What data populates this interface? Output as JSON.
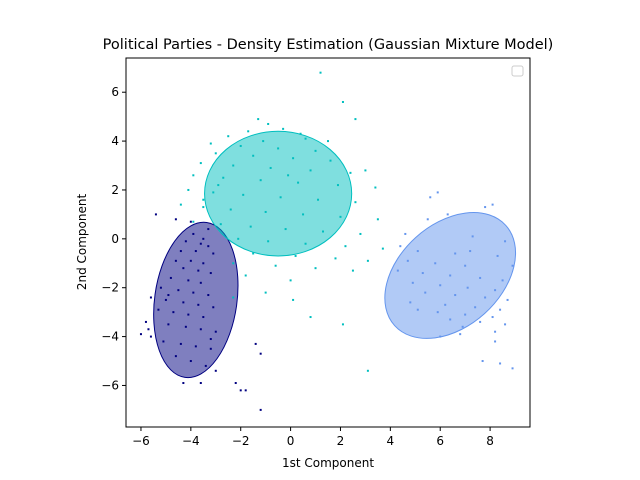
{
  "chart_data": {
    "type": "scatter",
    "title": "Political Parties - Density Estimation (Gaussian Mixture Model)",
    "xlabel": "1st Component",
    "ylabel": "2nd Component",
    "xlim": [
      -6.6,
      9.6
    ],
    "ylim": [
      -7.7,
      7.4
    ],
    "xticks": [
      -6,
      -4,
      -2,
      0,
      2,
      4,
      6,
      8
    ],
    "yticks": [
      -6,
      -4,
      -2,
      0,
      2,
      4,
      6
    ],
    "grid": false,
    "legend": {
      "placement": "top-right",
      "entries": []
    },
    "series": [
      {
        "color": "#000080",
        "ellipse": {
          "cx": -3.8,
          "cy": -2.5,
          "rx": 1.65,
          "ry": 3.2,
          "angle_deg": 8,
          "fill": "#000080",
          "opacity": 0.5
        },
        "points": [
          [
            -5.4,
            1.0
          ],
          [
            -4.6,
            0.8
          ],
          [
            -4.0,
            0.7
          ],
          [
            -3.3,
            0.4
          ],
          [
            -3.9,
            0.2
          ],
          [
            -3.5,
            0.0
          ],
          [
            -4.2,
            -0.1
          ],
          [
            -3.6,
            -0.2
          ],
          [
            -3.3,
            -0.3
          ],
          [
            -4.4,
            -0.5
          ],
          [
            -3.8,
            -0.5
          ],
          [
            -3.1,
            -0.6
          ],
          [
            -4.6,
            -0.9
          ],
          [
            -4.0,
            -0.9
          ],
          [
            -3.5,
            -1.0
          ],
          [
            -4.3,
            -1.2
          ],
          [
            -3.7,
            -1.3
          ],
          [
            -3.2,
            -1.4
          ],
          [
            -4.8,
            -1.6
          ],
          [
            -4.1,
            -1.7
          ],
          [
            -3.6,
            -1.8
          ],
          [
            -5.2,
            -2.0
          ],
          [
            -4.5,
            -2.1
          ],
          [
            -3.9,
            -2.2
          ],
          [
            -3.3,
            -2.3
          ],
          [
            -5.6,
            -2.4
          ],
          [
            -5.0,
            -2.5
          ],
          [
            -4.3,
            -2.6
          ],
          [
            -3.7,
            -2.7
          ],
          [
            -3.1,
            -2.8
          ],
          [
            -5.3,
            -2.9
          ],
          [
            -4.7,
            -3.0
          ],
          [
            -4.1,
            -3.1
          ],
          [
            -3.5,
            -3.2
          ],
          [
            -5.8,
            -3.4
          ],
          [
            -4.9,
            -3.5
          ],
          [
            -4.2,
            -3.6
          ],
          [
            -3.6,
            -3.7
          ],
          [
            -3.0,
            -3.8
          ],
          [
            -6.0,
            -3.9
          ],
          [
            -5.6,
            -4.0
          ],
          [
            -5.1,
            -4.2
          ],
          [
            -4.4,
            -4.3
          ],
          [
            -3.8,
            -4.4
          ],
          [
            -3.2,
            -4.5
          ],
          [
            -4.6,
            -4.8
          ],
          [
            -4.0,
            -5.0
          ],
          [
            -3.4,
            -5.2
          ],
          [
            -3.0,
            -5.4
          ],
          [
            -4.3,
            -5.9
          ],
          [
            -3.6,
            -5.9
          ],
          [
            -2.2,
            -5.9
          ],
          [
            -2.0,
            -6.2
          ],
          [
            -1.8,
            -6.2
          ],
          [
            -1.2,
            -4.7
          ],
          [
            -1.4,
            -4.3
          ],
          [
            -1.2,
            -7.0
          ],
          [
            -3.2,
            -4.1
          ],
          [
            -5.7,
            -3.7
          ],
          [
            -4.9,
            -2.3
          ]
        ]
      },
      {
        "color": "#00bfbf",
        "ellipse": {
          "cx": -0.5,
          "cy": 1.85,
          "rx": 2.95,
          "ry": 2.55,
          "angle_deg": 0,
          "fill": "#00bfbf",
          "opacity": 0.5
        },
        "points": [
          [
            1.2,
            6.8
          ],
          [
            2.1,
            5.6
          ],
          [
            2.6,
            4.9
          ],
          [
            -1.3,
            4.9
          ],
          [
            -0.9,
            4.7
          ],
          [
            -1.7,
            4.4
          ],
          [
            -0.3,
            4.5
          ],
          [
            0.4,
            4.3
          ],
          [
            -2.5,
            4.2
          ],
          [
            -3.2,
            3.9
          ],
          [
            -1.1,
            4.0
          ],
          [
            0.6,
            4.1
          ],
          [
            -2.0,
            3.8
          ],
          [
            -0.5,
            3.7
          ],
          [
            1.0,
            3.6
          ],
          [
            -3.0,
            3.5
          ],
          [
            -1.5,
            3.4
          ],
          [
            0.1,
            3.3
          ],
          [
            1.6,
            3.2
          ],
          [
            -3.6,
            3.1
          ],
          [
            -2.3,
            3.0
          ],
          [
            -0.8,
            2.9
          ],
          [
            0.8,
            2.8
          ],
          [
            2.4,
            2.7
          ],
          [
            -3.9,
            2.6
          ],
          [
            -2.7,
            2.5
          ],
          [
            -1.2,
            2.4
          ],
          [
            0.3,
            2.3
          ],
          [
            1.9,
            2.2
          ],
          [
            3.4,
            2.1
          ],
          [
            -4.1,
            2.0
          ],
          [
            -3.1,
            1.9
          ],
          [
            -1.9,
            1.8
          ],
          [
            -0.4,
            1.7
          ],
          [
            1.1,
            1.6
          ],
          [
            2.6,
            1.5
          ],
          [
            -4.4,
            1.4
          ],
          [
            -3.5,
            1.3
          ],
          [
            -2.4,
            1.2
          ],
          [
            -1.0,
            1.1
          ],
          [
            0.5,
            1.0
          ],
          [
            2.0,
            0.9
          ],
          [
            3.5,
            0.8
          ],
          [
            -3.9,
            0.7
          ],
          [
            -2.8,
            0.6
          ],
          [
            -1.6,
            0.5
          ],
          [
            -0.2,
            0.4
          ],
          [
            1.3,
            0.3
          ],
          [
            2.8,
            0.2
          ],
          [
            -2.1,
            0.0
          ],
          [
            -0.9,
            -0.1
          ],
          [
            0.6,
            -0.2
          ],
          [
            2.2,
            -0.3
          ],
          [
            3.7,
            -0.4
          ],
          [
            -1.5,
            -0.6
          ],
          [
            0.2,
            -0.7
          ],
          [
            1.8,
            -0.8
          ],
          [
            3.1,
            -0.9
          ],
          [
            -2.3,
            -1.0
          ],
          [
            -0.6,
            -1.1
          ],
          [
            1.0,
            -1.2
          ],
          [
            2.5,
            -1.3
          ],
          [
            -1.8,
            -1.5
          ],
          [
            0.0,
            -1.7
          ],
          [
            -1.0,
            -2.2
          ],
          [
            -2.3,
            -2.4
          ],
          [
            0.1,
            -2.5
          ],
          [
            0.8,
            -3.2
          ],
          [
            3.1,
            -5.4
          ],
          [
            2.1,
            -3.5
          ],
          [
            -3.5,
            1.6
          ],
          [
            3.0,
            2.8
          ],
          [
            -2.9,
            2.2
          ],
          [
            1.5,
            4.0
          ],
          [
            -0.1,
            2.6
          ]
        ]
      },
      {
        "color": "#6495ed",
        "ellipse": {
          "cx": 6.4,
          "cy": -1.5,
          "rx": 3.0,
          "ry": 2.1,
          "angle_deg": -42,
          "fill": "#6495ed",
          "opacity": 0.5
        },
        "points": [
          [
            5.9,
            1.9
          ],
          [
            5.6,
            1.7
          ],
          [
            7.8,
            1.3
          ],
          [
            8.1,
            1.4
          ],
          [
            6.3,
            1.0
          ],
          [
            5.5,
            0.8
          ],
          [
            4.6,
            0.2
          ],
          [
            7.3,
            0.1
          ],
          [
            8.6,
            -0.1
          ],
          [
            4.4,
            -0.3
          ],
          [
            5.1,
            -0.5
          ],
          [
            6.6,
            -0.6
          ],
          [
            8.3,
            -0.7
          ],
          [
            4.7,
            -0.9
          ],
          [
            5.8,
            -1.0
          ],
          [
            7.0,
            -1.1
          ],
          [
            8.9,
            -1.1
          ],
          [
            4.3,
            -1.3
          ],
          [
            5.3,
            -1.4
          ],
          [
            6.4,
            -1.5
          ],
          [
            7.6,
            -1.6
          ],
          [
            8.5,
            -1.7
          ],
          [
            4.9,
            -1.8
          ],
          [
            6.0,
            -1.9
          ],
          [
            7.1,
            -2.0
          ],
          [
            8.2,
            -2.1
          ],
          [
            5.4,
            -2.2
          ],
          [
            6.6,
            -2.3
          ],
          [
            7.8,
            -2.4
          ],
          [
            8.7,
            -2.5
          ],
          [
            4.8,
            -2.6
          ],
          [
            6.2,
            -2.7
          ],
          [
            7.4,
            -2.8
          ],
          [
            8.4,
            -2.9
          ],
          [
            5.9,
            -3.0
          ],
          [
            7.0,
            -3.1
          ],
          [
            8.1,
            -3.2
          ],
          [
            6.4,
            -3.3
          ],
          [
            7.6,
            -3.4
          ],
          [
            8.6,
            -3.5
          ],
          [
            6.9,
            -3.6
          ],
          [
            8.2,
            -3.8
          ],
          [
            8.2,
            -4.2
          ],
          [
            7.7,
            -5.0
          ],
          [
            8.4,
            -5.1
          ],
          [
            8.9,
            -5.3
          ],
          [
            5.1,
            -2.9
          ],
          [
            6.8,
            -3.9
          ],
          [
            7.2,
            -0.5
          ],
          [
            6.0,
            -4.0
          ]
        ]
      }
    ]
  }
}
